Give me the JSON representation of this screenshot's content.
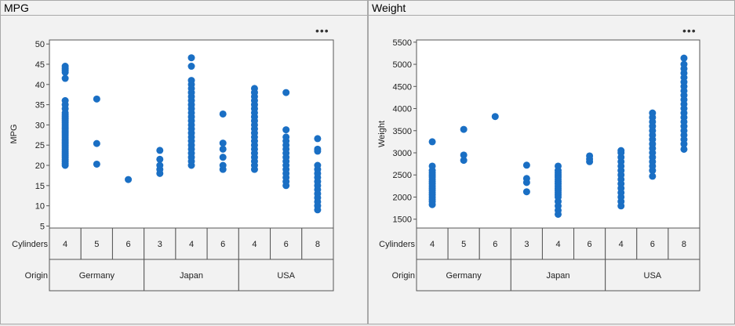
{
  "panels": [
    {
      "title": "MPG",
      "more_icon": "ellipsis-icon"
    },
    {
      "title": "Weight",
      "more_icon": "ellipsis-icon"
    }
  ],
  "colors": {
    "point": "#1a6fc4",
    "border": "#555555",
    "panel_bg": "#f2f2f2"
  },
  "chart_data": [
    {
      "type": "scatter",
      "title": "",
      "ylabel": "MPG",
      "ylim": [
        4.5,
        51
      ],
      "yticks": [
        5,
        10,
        15,
        20,
        25,
        30,
        35,
        40,
        45,
        50
      ],
      "grid": false,
      "row_labels": [
        "Cylinders",
        "Origin"
      ],
      "cylinders": [
        "4",
        "5",
        "6",
        "3",
        "4",
        "6",
        "4",
        "6",
        "8"
      ],
      "origins": [
        {
          "label": "Germany",
          "span": 3
        },
        {
          "label": "Japan",
          "span": 3
        },
        {
          "label": "USA",
          "span": 3
        }
      ],
      "groups": [
        {
          "origin": "Germany",
          "cylinders": "4",
          "y": [
            20,
            20.5,
            21,
            21.5,
            22,
            22.5,
            23,
            23.5,
            24,
            24.5,
            25,
            25.5,
            26,
            26.5,
            27,
            27.5,
            28,
            28.5,
            29,
            29.5,
            30,
            30.5,
            31,
            31.5,
            32,
            32.5,
            33,
            34,
            35,
            36,
            41.5,
            43,
            43.5,
            44,
            44.5
          ]
        },
        {
          "origin": "Germany",
          "cylinders": "5",
          "y": [
            20.3,
            25.4,
            36.4
          ]
        },
        {
          "origin": "Germany",
          "cylinders": "6",
          "y": [
            16.5
          ]
        },
        {
          "origin": "Japan",
          "cylinders": "3",
          "y": [
            18,
            19,
            20,
            21.5,
            23.7
          ]
        },
        {
          "origin": "Japan",
          "cylinders": "4",
          "y": [
            20,
            21,
            22,
            23,
            24,
            25,
            26,
            27,
            28,
            29,
            30,
            31,
            32,
            33,
            34,
            35,
            36,
            37,
            38,
            39,
            40,
            41,
            44.5,
            46.6
          ]
        },
        {
          "origin": "Japan",
          "cylinders": "6",
          "y": [
            19,
            20,
            22,
            24,
            25.5,
            32.7
          ]
        },
        {
          "origin": "USA",
          "cylinders": "4",
          "y": [
            19,
            20,
            21,
            22,
            23,
            24,
            25,
            26,
            27,
            28,
            29,
            30,
            31,
            32,
            33,
            34,
            35,
            36,
            37,
            38,
            39
          ]
        },
        {
          "origin": "USA",
          "cylinders": "6",
          "y": [
            15,
            16,
            17,
            18,
            19,
            20,
            21,
            22,
            23,
            24,
            25,
            26,
            27,
            28.8,
            38
          ]
        },
        {
          "origin": "USA",
          "cylinders": "8",
          "y": [
            9,
            10,
            11,
            12,
            13,
            14,
            15,
            16,
            17,
            18,
            19,
            20,
            23.5,
            24,
            26.6
          ]
        }
      ]
    },
    {
      "type": "scatter",
      "title": "",
      "ylabel": "Weight",
      "ylim": [
        1300,
        5550
      ],
      "yticks": [
        1500,
        2000,
        2500,
        3000,
        3500,
        4000,
        4500,
        5000,
        5500
      ],
      "grid": false,
      "row_labels": [
        "Cylinders",
        "Origin"
      ],
      "cylinders": [
        "4",
        "5",
        "6",
        "3",
        "4",
        "6",
        "4",
        "6",
        "8"
      ],
      "origins": [
        {
          "label": "Germany",
          "span": 3
        },
        {
          "label": "Japan",
          "span": 3
        },
        {
          "label": "USA",
          "span": 3
        }
      ],
      "groups": [
        {
          "origin": "Germany",
          "cylinders": "4",
          "y": [
            1830,
            1900,
            1950,
            2000,
            2050,
            2100,
            2150,
            2200,
            2250,
            2300,
            2350,
            2400,
            2450,
            2500,
            2550,
            2600,
            2700,
            3250
          ]
        },
        {
          "origin": "Germany",
          "cylinders": "5",
          "y": [
            2830,
            2950,
            3530
          ]
        },
        {
          "origin": "Germany",
          "cylinders": "6",
          "y": [
            3820
          ]
        },
        {
          "origin": "Japan",
          "cylinders": "3",
          "y": [
            2120,
            2330,
            2420,
            2720
          ]
        },
        {
          "origin": "Japan",
          "cylinders": "4",
          "y": [
            1610,
            1700,
            1800,
            1900,
            2000,
            2050,
            2100,
            2150,
            2200,
            2250,
            2300,
            2350,
            2400,
            2450,
            2500,
            2550,
            2600,
            2700
          ]
        },
        {
          "origin": "Japan",
          "cylinders": "6",
          "y": [
            2800,
            2860,
            2930
          ]
        },
        {
          "origin": "USA",
          "cylinders": "4",
          "y": [
            1800,
            1900,
            2000,
            2100,
            2200,
            2300,
            2400,
            2500,
            2600,
            2700,
            2800,
            2900,
            3000,
            3050
          ]
        },
        {
          "origin": "USA",
          "cylinders": "6",
          "y": [
            2470,
            2600,
            2700,
            2800,
            2900,
            3000,
            3100,
            3200,
            3300,
            3400,
            3500,
            3600,
            3700,
            3800,
            3900
          ]
        },
        {
          "origin": "USA",
          "cylinders": "8",
          "y": [
            3080,
            3200,
            3300,
            3400,
            3500,
            3600,
            3700,
            3800,
            3900,
            4000,
            4100,
            4200,
            4300,
            4400,
            4500,
            4600,
            4700,
            4800,
            4900,
            5000,
            5140
          ]
        }
      ]
    }
  ]
}
